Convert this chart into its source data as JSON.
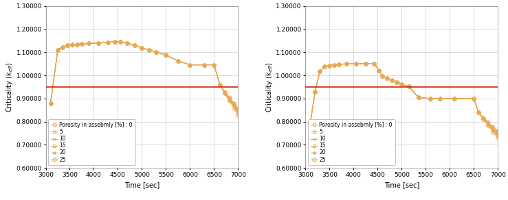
{
  "left_plot": {
    "xlabel": "Time [sec]",
    "ylabel": "Criticality (k$_{eff}$)",
    "xlim": [
      3000,
      7000
    ],
    "ylim": [
      0.6,
      1.3
    ],
    "yticks": [
      0.6,
      0.7,
      0.8,
      0.9,
      1.0,
      1.1,
      1.2,
      1.3
    ],
    "xticks": [
      3000,
      3500,
      4000,
      4500,
      5000,
      5500,
      6000,
      6500,
      7000
    ],
    "hline": 0.95,
    "common_x": [
      3100,
      3250,
      3350,
      3450,
      3550,
      3650,
      3750,
      3900,
      4100,
      4300,
      4430,
      4550,
      4700,
      4850,
      5000,
      5150,
      5300,
      5500,
      5750,
      6000,
      6300,
      6500,
      6620,
      6720,
      6820,
      6920,
      7000
    ],
    "common_y": [
      0.878,
      1.11,
      1.123,
      1.13,
      1.133,
      1.135,
      1.136,
      1.138,
      1.14,
      1.143,
      1.146,
      1.144,
      1.14,
      1.13,
      1.12,
      1.11,
      1.102,
      1.088,
      1.063,
      1.046,
      1.046,
      1.046,
      0.96,
      0.93,
      0.905,
      0.88,
      0.858
    ],
    "fan_x": [
      6620,
      6720,
      6820,
      6920,
      7000
    ],
    "fan_offsets": [
      0.0,
      -0.005,
      -0.01,
      -0.015,
      -0.022,
      -0.03
    ],
    "series_keys": [
      "0",
      "5",
      "10",
      "15",
      "20",
      "25"
    ],
    "legend_dummy_y": [
      0.82,
      0.795,
      0.77,
      0.745,
      0.69,
      0.65
    ]
  },
  "right_plot": {
    "xlabel": "Time [sec]",
    "ylabel": "Criticality (k$_{eff}$)",
    "xlim": [
      3000,
      7000
    ],
    "ylim": [
      0.6,
      1.3
    ],
    "yticks": [
      0.6,
      0.7,
      0.8,
      0.9,
      1.0,
      1.1,
      1.2,
      1.3
    ],
    "xticks": [
      3000,
      3500,
      4000,
      4500,
      5000,
      5500,
      6000,
      6500,
      7000
    ],
    "hline": 0.95,
    "common_x": [
      3100,
      3200,
      3300,
      3400,
      3500,
      3600,
      3700,
      3850,
      4050,
      4250,
      4430,
      4530,
      4600,
      4700,
      4800,
      4900,
      5000,
      5150,
      5350,
      5600,
      5800,
      6100,
      6500,
      6600,
      6700,
      6800,
      6900,
      7000
    ],
    "common_y": [
      0.794,
      0.93,
      1.018,
      1.038,
      1.043,
      1.046,
      1.048,
      1.05,
      1.05,
      1.052,
      1.052,
      1.02,
      0.998,
      0.988,
      0.98,
      0.972,
      0.963,
      0.952,
      0.905,
      0.9,
      0.9,
      0.9,
      0.9,
      0.84,
      0.818,
      0.798,
      0.778,
      0.76
    ],
    "fan_x": [
      6600,
      6700,
      6800,
      6900,
      7000
    ],
    "fan_offsets": [
      0.0,
      -0.005,
      -0.01,
      -0.015,
      -0.022,
      -0.03
    ],
    "series_keys": [
      "0",
      "5",
      "10",
      "15",
      "20",
      "25"
    ],
    "legend_dummy_y": [
      0.82,
      0.8,
      0.77,
      0.745,
      0.7,
      0.65
    ]
  },
  "markers": {
    "0": "o",
    "5": "^",
    "10": "x",
    "15": "s",
    "20": "*",
    "25": "D"
  },
  "labels": {
    "0": "Porosity in assebmly [%] : 0",
    "5": "5",
    "10": "10",
    "15": "15",
    "20": "20",
    "25": "25"
  },
  "line_color": "#E8A855",
  "hline_color": "#CC2200",
  "bg_color": "#FFFFFF",
  "grid_color": "#CCCCCC",
  "marker_size": 3.5,
  "linewidth": 0.8,
  "font_size": 7.0
}
